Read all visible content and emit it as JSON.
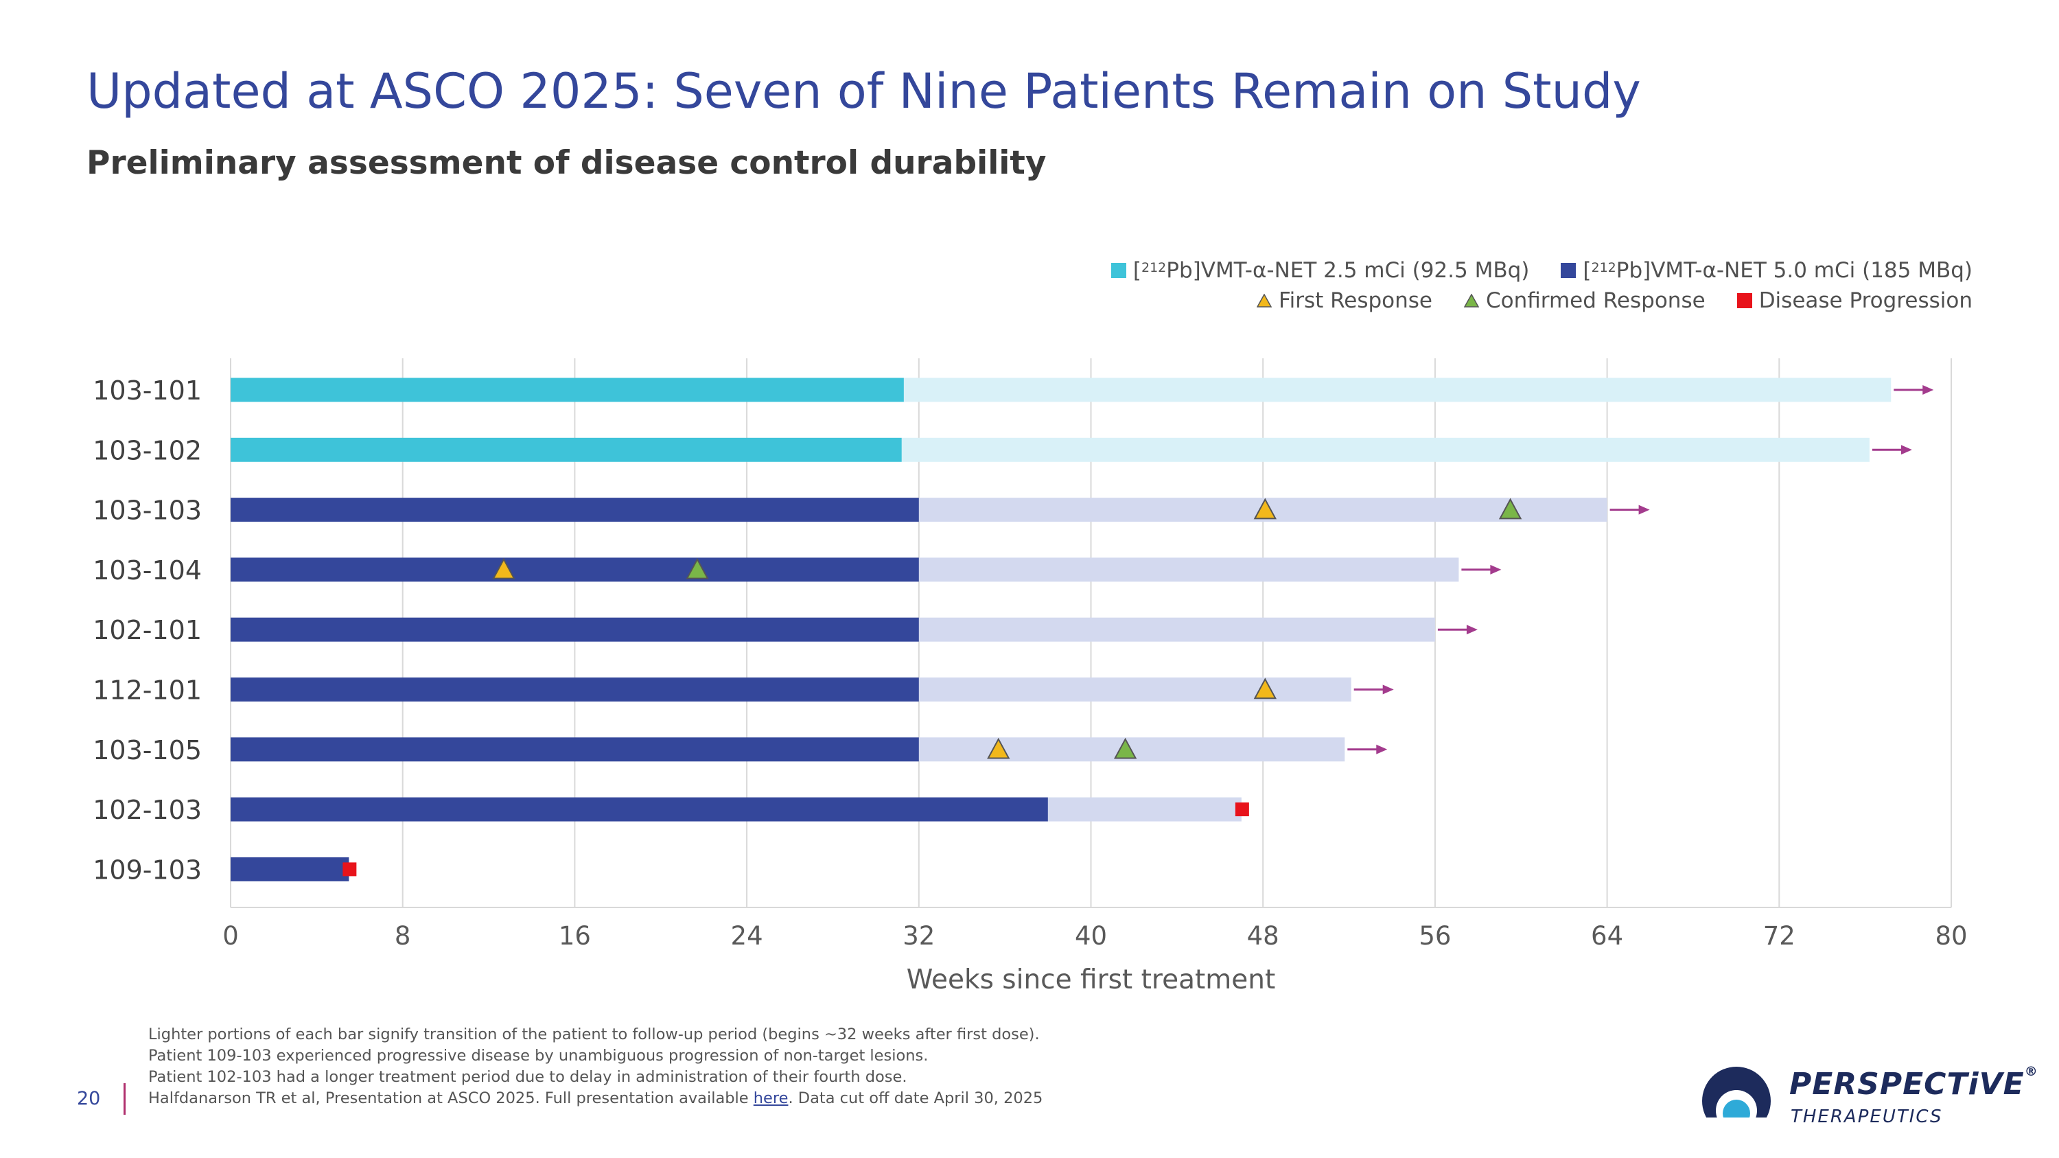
{
  "slide": {
    "title": "Updated at ASCO 2025: Seven of Nine Patients Remain on Study",
    "subtitle": "Preliminary assessment of disease control durability",
    "page_number": "20"
  },
  "legend": {
    "dose_low": {
      "prefix": "[",
      "sup": "212",
      "text": "Pb]VMT-α-NET 2.5 mCi (92.5 MBq)"
    },
    "dose_high": {
      "prefix": "[",
      "sup": "212",
      "text": "Pb]VMT-α-NET 5.0 mCi (185 MBq)"
    },
    "first_response": "First Response",
    "confirmed_response": "Confirmed Response",
    "disease_progression": "Disease Progression"
  },
  "colors": {
    "low_treatment": "#3ec3d9",
    "low_followup": "#d9f1f8",
    "high_treatment": "#34479b",
    "high_followup": "#d3d9ef",
    "first_response": "#f2b81b",
    "confirmed_response": "#7ab648",
    "progression": "#e8131b",
    "arrow": "#a33b8d",
    "grid": "#d9d9d9",
    "title": "#34479b"
  },
  "chart_data": {
    "type": "bar",
    "orientation": "horizontal-swimmer",
    "xlabel": "Weeks since first treatment",
    "xlim": [
      0,
      80
    ],
    "xticks": [
      0,
      8,
      16,
      24,
      32,
      40,
      48,
      56,
      64,
      72,
      80
    ],
    "grid": true,
    "patients": [
      {
        "id": "103-101",
        "dose": "low",
        "treatment_end": 31.3,
        "followup_end": 77.2,
        "ongoing": true,
        "first_response": null,
        "confirmed_response": null,
        "progression": null
      },
      {
        "id": "103-102",
        "dose": "low",
        "treatment_end": 31.2,
        "followup_end": 76.2,
        "ongoing": true,
        "first_response": null,
        "confirmed_response": null,
        "progression": null
      },
      {
        "id": "103-103",
        "dose": "high",
        "treatment_end": 32,
        "followup_end": 64.0,
        "ongoing": true,
        "first_response": 48.1,
        "confirmed_response": 59.5,
        "progression": null
      },
      {
        "id": "103-104",
        "dose": "high",
        "treatment_end": 32,
        "followup_end": 57.1,
        "ongoing": true,
        "first_response": 12.7,
        "confirmed_response": 21.7,
        "progression": null
      },
      {
        "id": "102-101",
        "dose": "high",
        "treatment_end": 32,
        "followup_end": 56.0,
        "ongoing": true,
        "first_response": null,
        "confirmed_response": null,
        "progression": null
      },
      {
        "id": "112-101",
        "dose": "high",
        "treatment_end": 32,
        "followup_end": 52.1,
        "ongoing": true,
        "first_response": 48.1,
        "confirmed_response": null,
        "progression": null
      },
      {
        "id": "103-105",
        "dose": "high",
        "treatment_end": 32,
        "followup_end": 51.8,
        "ongoing": true,
        "first_response": 35.7,
        "confirmed_response": 41.6,
        "progression": null
      },
      {
        "id": "102-103",
        "dose": "high",
        "treatment_end": 38,
        "followup_end": 47.0,
        "ongoing": false,
        "first_response": null,
        "confirmed_response": null,
        "progression": 47.0
      },
      {
        "id": "109-103",
        "dose": "high",
        "treatment_end": 5.5,
        "followup_end": 5.5,
        "ongoing": false,
        "first_response": null,
        "confirmed_response": null,
        "progression": 5.5
      }
    ]
  },
  "footnotes": {
    "line1": "Lighter portions of each bar signify transition of the patient to follow-up period (begins ~32 weeks after first dose).",
    "line2": "Patient 109-103 experienced progressive disease by unambiguous progression of non-target lesions.",
    "line3": "Patient 102-103 had a longer treatment period due to delay in administration of their fourth dose.",
    "line4_pre": "Halfdanarson TR et al, Presentation at ASCO 2025. Full presentation available ",
    "line4_link": "here",
    "line4_post": ". Data cut off date April 30, 2025"
  },
  "logo": {
    "name": "PERSPECTiVE",
    "registered": "®",
    "sub": "THERAPEUTICS"
  }
}
